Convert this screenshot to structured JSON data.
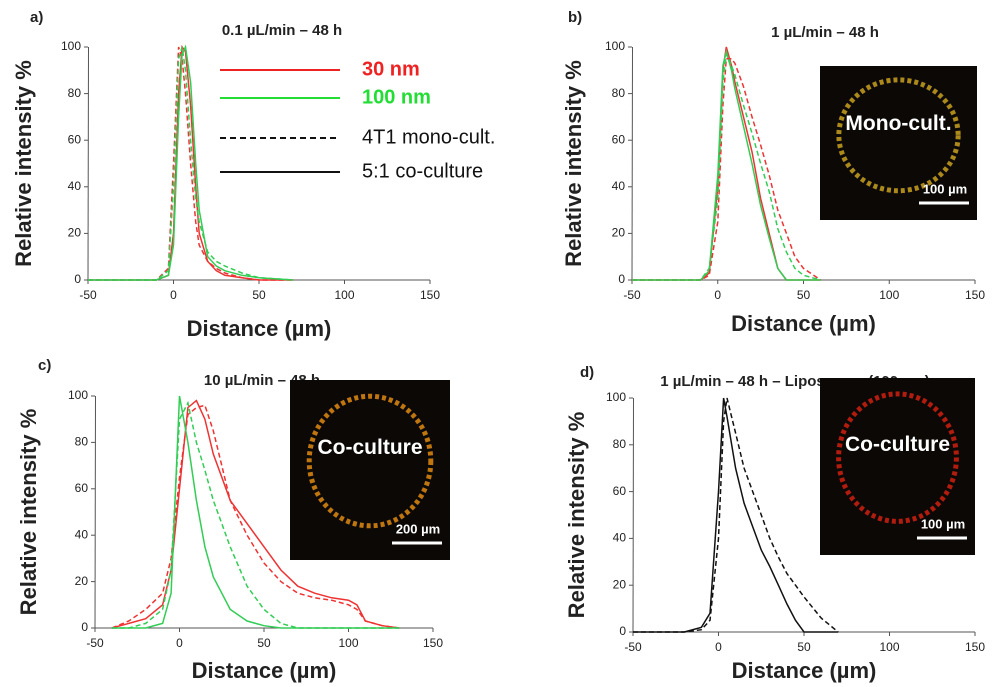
{
  "chart_data": [
    {
      "type": "line",
      "panel": "a)",
      "title": "0.1 µL/min – 48 h",
      "x_label": "Distance (µm)",
      "y_label": "Relative intensity %",
      "xlim": [
        -50,
        150
      ],
      "xticks": [
        -50,
        0,
        50,
        100,
        150
      ],
      "ylim": [
        0,
        100
      ],
      "yticks": [
        0,
        20,
        40,
        60,
        80,
        100
      ],
      "legend": [
        {
          "label": "30 nm",
          "color": "#ee2222"
        },
        {
          "label": "100 nm",
          "color": "#22dd33"
        },
        {
          "label": "4T1 mono-cult.",
          "color": "#111111",
          "dashed": true
        },
        {
          "label": "5:1 co-culture",
          "color": "#111111",
          "dashed": false
        }
      ],
      "x": [
        -50,
        -10,
        -3,
        0,
        3,
        5,
        7,
        10,
        13,
        15,
        20,
        25,
        30,
        40,
        50,
        70
      ],
      "series": [
        {
          "color": "#ee3333",
          "dashed": false,
          "values": [
            0,
            0,
            2,
            20,
            80,
            100,
            98,
            75,
            40,
            20,
            8,
            4,
            2,
            1,
            0,
            0
          ]
        },
        {
          "color": "#ee3333",
          "dashed": true,
          "values": [
            0,
            0,
            5,
            50,
            100,
            95,
            80,
            50,
            25,
            15,
            8,
            5,
            3,
            1,
            0,
            0
          ]
        },
        {
          "color": "#33cc55",
          "dashed": false,
          "values": [
            0,
            0,
            2,
            15,
            70,
            97,
            100,
            85,
            50,
            30,
            10,
            6,
            4,
            2,
            1,
            0
          ]
        },
        {
          "color": "#33cc55",
          "dashed": true,
          "values": [
            0,
            0,
            4,
            40,
            95,
            100,
            90,
            60,
            35,
            25,
            12,
            8,
            6,
            3,
            1,
            0
          ]
        }
      ]
    },
    {
      "type": "line",
      "panel": "b)",
      "title": "1 µL/min – 48 h",
      "x_label": "Distance (µm)",
      "y_label": "Relative intensity %",
      "xlim": [
        -50,
        150
      ],
      "xticks": [
        -50,
        0,
        50,
        100,
        150
      ],
      "ylim": [
        0,
        100
      ],
      "yticks": [
        0,
        20,
        40,
        60,
        80,
        100
      ],
      "inset": {
        "label": "Mono-cult.",
        "scale": "100 µm",
        "tint": "#c8a020"
      },
      "x": [
        -50,
        -10,
        -5,
        0,
        3,
        5,
        8,
        10,
        15,
        20,
        25,
        30,
        35,
        40,
        45,
        50,
        60
      ],
      "series": [
        {
          "color": "#ee3333",
          "dashed": false,
          "values": [
            0,
            0,
            3,
            40,
            90,
            100,
            92,
            85,
            70,
            55,
            35,
            20,
            5,
            0,
            0,
            0,
            0
          ]
        },
        {
          "color": "#33cc55",
          "dashed": false,
          "values": [
            0,
            0,
            4,
            45,
            92,
            98,
            90,
            82,
            66,
            50,
            32,
            18,
            5,
            0,
            0,
            0,
            0
          ]
        },
        {
          "color": "#ee3333",
          "dashed": true,
          "values": [
            0,
            0,
            2,
            25,
            75,
            95,
            95,
            93,
            83,
            70,
            58,
            45,
            30,
            20,
            10,
            5,
            0
          ]
        },
        {
          "color": "#33cc55",
          "dashed": true,
          "values": [
            0,
            0,
            5,
            35,
            85,
            97,
            92,
            88,
            75,
            63,
            50,
            38,
            22,
            12,
            5,
            2,
            0
          ]
        }
      ]
    },
    {
      "type": "line",
      "panel": "c)",
      "title": "10 µL/min – 48 h",
      "x_label": "Distance (µm)",
      "y_label": "Relative intensity %",
      "xlim": [
        -50,
        150
      ],
      "xticks": [
        -50,
        0,
        50,
        100,
        150
      ],
      "ylim": [
        0,
        100
      ],
      "yticks": [
        0,
        20,
        40,
        60,
        80,
        100
      ],
      "inset": {
        "label": "Co-culture",
        "scale": "200 µm",
        "tint": "#e08a10"
      },
      "x": [
        -40,
        -30,
        -20,
        -10,
        -5,
        0,
        5,
        10,
        15,
        20,
        25,
        30,
        40,
        50,
        60,
        70,
        80,
        90,
        100,
        105,
        110,
        120,
        130
      ],
      "series": [
        {
          "color": "#ee3333",
          "dashed": false,
          "values": [
            0,
            2,
            4,
            10,
            25,
            60,
            95,
            98,
            90,
            75,
            65,
            55,
            45,
            35,
            25,
            18,
            15,
            13,
            12,
            10,
            3,
            1,
            0
          ]
        },
        {
          "color": "#ee3333",
          "dashed": true,
          "values": [
            0,
            3,
            8,
            15,
            30,
            65,
            92,
            95,
            96,
            85,
            70,
            55,
            40,
            28,
            20,
            15,
            13,
            12,
            10,
            8,
            3,
            1,
            0
          ]
        },
        {
          "color": "#33cc55",
          "dashed": false,
          "values": [
            0,
            0,
            0,
            2,
            15,
            100,
            80,
            55,
            35,
            22,
            15,
            8,
            3,
            1,
            0,
            0,
            0,
            0,
            0,
            0,
            0,
            0,
            0
          ]
        },
        {
          "color": "#33cc55",
          "dashed": true,
          "values": [
            0,
            0,
            2,
            8,
            25,
            90,
            97,
            80,
            68,
            55,
            45,
            35,
            18,
            8,
            2,
            0,
            0,
            0,
            0,
            0,
            0,
            0,
            0
          ]
        }
      ]
    },
    {
      "type": "line",
      "panel": "d)",
      "title": "1 µL/min – 48 h – Liposomes (100 nm)",
      "x_label": "Distance (µm)",
      "y_label": "Relative intensity %",
      "xlim": [
        -50,
        150
      ],
      "xticks": [
        -50,
        0,
        50,
        100,
        150
      ],
      "ylim": [
        0,
        100
      ],
      "yticks": [
        0,
        20,
        40,
        60,
        80,
        100
      ],
      "inset": {
        "label": "Co-culture",
        "scale": "100 µm",
        "tint": "#d02010"
      },
      "x": [
        -50,
        -20,
        -10,
        -5,
        0,
        3,
        5,
        10,
        15,
        20,
        25,
        30,
        35,
        40,
        45,
        50,
        60,
        70
      ],
      "series": [
        {
          "color": "#111111",
          "dashed": false,
          "values": [
            0,
            0,
            2,
            8,
            60,
            100,
            92,
            70,
            55,
            45,
            35,
            28,
            20,
            12,
            5,
            0,
            0,
            0
          ]
        },
        {
          "color": "#111111",
          "dashed": true,
          "values": [
            0,
            0,
            1,
            5,
            40,
            90,
            100,
            85,
            70,
            60,
            50,
            40,
            32,
            25,
            20,
            15,
            6,
            0
          ]
        }
      ]
    }
  ]
}
